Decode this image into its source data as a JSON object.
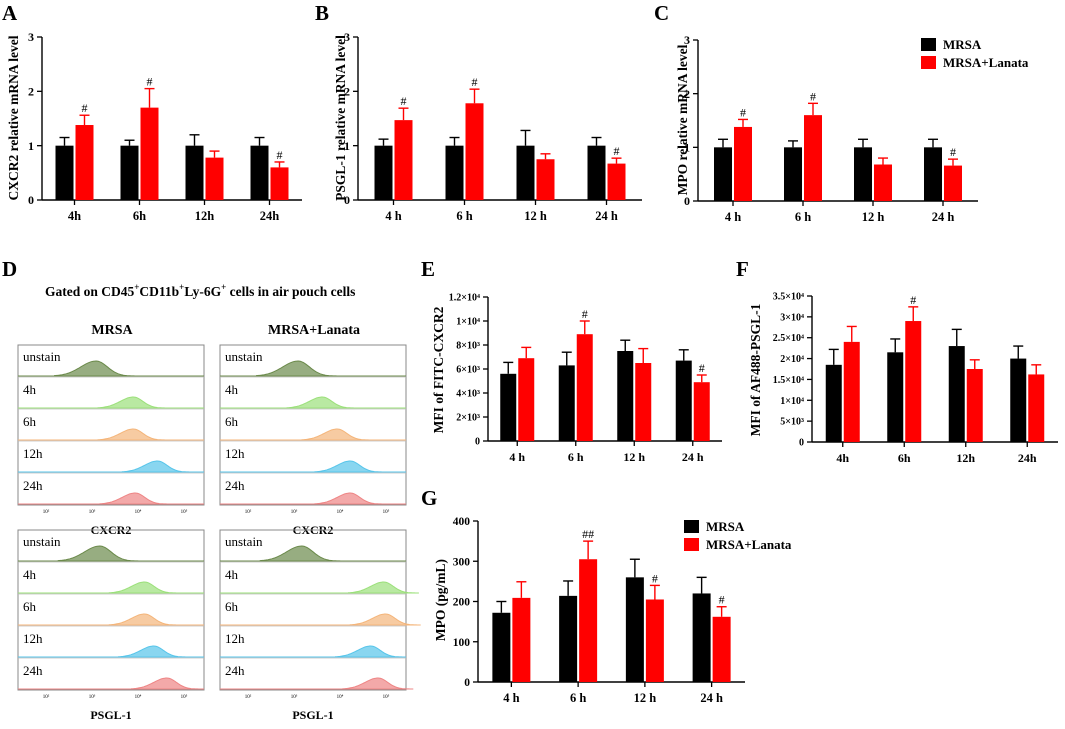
{
  "chart_data": [
    {
      "panel": "A",
      "type": "bar",
      "ylabel": "CXCR2 relative mRNA level",
      "categories": [
        "4h",
        "6h",
        "12h",
        "24h"
      ],
      "series": [
        {
          "name": "MRSA",
          "color": "#000000",
          "values": [
            1.0,
            1.0,
            1.0,
            1.0
          ],
          "errors": [
            0.15,
            0.1,
            0.2,
            0.15
          ]
        },
        {
          "name": "MRSA+Lanata",
          "color": "#ff0000",
          "values": [
            1.38,
            1.7,
            0.78,
            0.6
          ],
          "errors": [
            0.18,
            0.35,
            0.12,
            0.1
          ]
        }
      ],
      "annotations": [
        "#",
        "#",
        "",
        "#"
      ],
      "ylim": [
        0,
        3
      ],
      "yticks": [
        "0",
        "1",
        "2",
        "3"
      ]
    },
    {
      "panel": "B",
      "type": "bar",
      "ylabel": "PSGL-1 relative mRNA level",
      "categories": [
        "4 h",
        "6 h",
        "12 h",
        "24 h"
      ],
      "series": [
        {
          "name": "MRSA",
          "color": "#000000",
          "values": [
            1.0,
            1.0,
            1.0,
            1.0
          ],
          "errors": [
            0.12,
            0.15,
            0.28,
            0.15
          ]
        },
        {
          "name": "MRSA+Lanata",
          "color": "#ff0000",
          "values": [
            1.47,
            1.78,
            0.75,
            0.67
          ],
          "errors": [
            0.22,
            0.26,
            0.1,
            0.1
          ]
        }
      ],
      "annotations": [
        "#",
        "#",
        "",
        "#"
      ],
      "ylim": [
        0,
        3
      ],
      "yticks": [
        "0",
        "1",
        "2",
        "3"
      ]
    },
    {
      "panel": "C",
      "type": "bar",
      "ylabel": "MPO relative mRNA level",
      "categories": [
        "4 h",
        "6 h",
        "12 h",
        "24 h"
      ],
      "series": [
        {
          "name": "MRSA",
          "color": "#000000",
          "values": [
            1.0,
            1.0,
            1.0,
            1.0
          ],
          "errors": [
            0.15,
            0.12,
            0.15,
            0.15
          ]
        },
        {
          "name": "MRSA+Lanata",
          "color": "#ff0000",
          "values": [
            1.38,
            1.6,
            0.68,
            0.66
          ],
          "errors": [
            0.14,
            0.22,
            0.12,
            0.12
          ]
        }
      ],
      "annotations": [
        "#",
        "#",
        "",
        "#"
      ],
      "legend": [
        "MRSA",
        "MRSA+Lanata"
      ],
      "ylim": [
        0,
        3
      ],
      "yticks": [
        "0",
        "1",
        "2",
        "3"
      ]
    },
    {
      "panel": "E",
      "type": "bar",
      "ylabel": "MFI of FITC-CXCR2",
      "categories": [
        "4 h",
        "6 h",
        "12 h",
        "24 h"
      ],
      "series": [
        {
          "name": "MRSA",
          "color": "#000000",
          "values": [
            5600,
            6300,
            7500,
            6700
          ],
          "errors": [
            950,
            1100,
            900,
            900
          ]
        },
        {
          "name": "MRSA+Lanata",
          "color": "#ff0000",
          "values": [
            6900,
            8900,
            6500,
            4900
          ],
          "errors": [
            900,
            1100,
            1200,
            600
          ]
        }
      ],
      "annotations": [
        "",
        "#",
        "",
        "#"
      ],
      "ylim": [
        0,
        12000
      ],
      "yticks": [
        "0",
        "2×10³",
        "4×10³",
        "6×10³",
        "8×10³",
        "1×10⁴",
        "1.2×10⁴"
      ]
    },
    {
      "panel": "F",
      "type": "bar",
      "ylabel": "MFI of AF488-PSGL-1",
      "categories": [
        "4h",
        "6h",
        "12h",
        "24h"
      ],
      "series": [
        {
          "name": "MRSA",
          "color": "#000000",
          "values": [
            18500,
            21500,
            23000,
            20000
          ],
          "errors": [
            3700,
            3200,
            4000,
            3000
          ]
        },
        {
          "name": "MRSA+Lanata",
          "color": "#ff0000",
          "values": [
            24000,
            29000,
            17500,
            16200
          ],
          "errors": [
            3700,
            3400,
            2200,
            2300
          ]
        }
      ],
      "annotations": [
        "",
        "#",
        "",
        ""
      ],
      "ylim": [
        0,
        35000
      ],
      "yticks": [
        "0",
        "5×10³",
        "1×10⁴",
        "1.5×10⁴",
        "2×10⁴",
        "2.5×10⁴",
        "3×10⁴",
        "3.5×10⁴"
      ]
    },
    {
      "panel": "G",
      "type": "bar",
      "ylabel": "MPO (pg/mL)",
      "categories": [
        "4 h",
        "6 h",
        "12 h",
        "24 h"
      ],
      "series": [
        {
          "name": "MRSA",
          "color": "#000000",
          "values": [
            172,
            214,
            260,
            220
          ],
          "errors": [
            28,
            37,
            45,
            40
          ]
        },
        {
          "name": "MRSA+Lanata",
          "color": "#ff0000",
          "values": [
            209,
            305,
            205,
            162
          ],
          "errors": [
            40,
            45,
            35,
            25
          ]
        }
      ],
      "annotations": [
        "",
        "##",
        "#",
        "#"
      ],
      "legend": [
        "MRSA",
        "MRSA+Lanata"
      ],
      "ylim": [
        0,
        400
      ],
      "yticks": [
        "0",
        "100",
        "200",
        "300",
        "400"
      ]
    }
  ],
  "flow_panel": {
    "label": "D",
    "title_parts": [
      "Gated on CD45",
      "+",
      "CD11b",
      "+",
      "Ly-6G",
      "+",
      " cells in air pouch cells"
    ],
    "column_titles": [
      "MRSA",
      "MRSA+Lanata"
    ],
    "row_labels": [
      "unstain",
      "4h",
      "6h",
      "12h",
      "24h"
    ],
    "row_colors": [
      "#6b8a4b",
      "#9be07a",
      "#f4b57a",
      "#57c5ea",
      "#ee8585"
    ],
    "axis_ticks": [
      "10²",
      "10³",
      "10⁴",
      "10⁵"
    ],
    "marker_labels": [
      "CXCR2",
      "PSGL-1"
    ],
    "group_peaks": [
      [
        [
          0.42,
          0.62,
          0.62,
          0.75,
          0.63
        ],
        [
          0.42,
          0.55,
          0.63,
          0.7,
          0.7
        ]
      ],
      [
        [
          0.44,
          0.68,
          0.68,
          0.73,
          0.8
        ],
        [
          0.44,
          0.88,
          0.89,
          0.81,
          0.85
        ]
      ]
    ]
  }
}
